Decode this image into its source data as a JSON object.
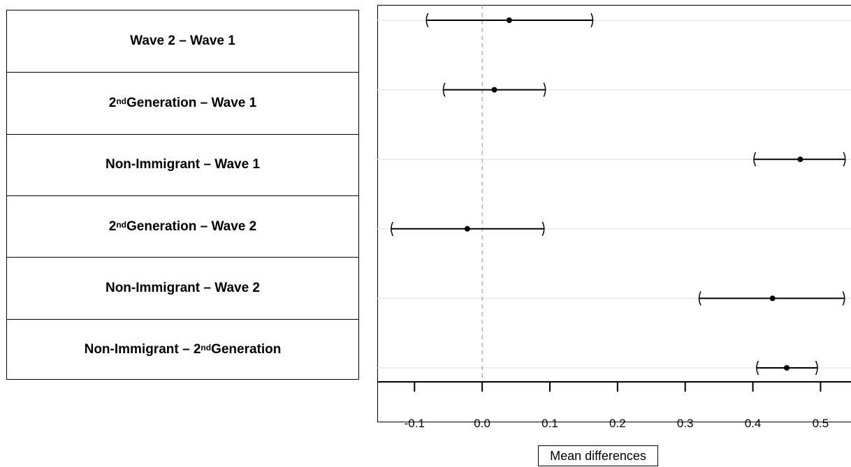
{
  "chart_data": {
    "type": "scatter",
    "subtype": "interval-plot",
    "comparisons": [
      {
        "pre": "Wave 2 – Wave 1",
        "sup": "",
        "post": "",
        "estimate": 0.04,
        "lower": -0.083,
        "upper": 0.164
      },
      {
        "pre": "2",
        "sup": "nd",
        "post": " Generation – Wave 1",
        "estimate": 0.018,
        "lower": -0.058,
        "upper": 0.094
      },
      {
        "pre": "Non-Immigrant – Wave 1",
        "sup": "",
        "post": "",
        "estimate": 0.47,
        "lower": 0.401,
        "upper": 0.537
      },
      {
        "pre": "2",
        "sup": "nd",
        "post": " Generation – Wave 2",
        "estimate": -0.022,
        "lower": -0.135,
        "upper": 0.092
      },
      {
        "pre": "Non-Immigrant – Wave 2",
        "sup": "",
        "post": "",
        "estimate": 0.429,
        "lower": 0.32,
        "upper": 0.536
      },
      {
        "pre": "Non-Immigrant – 2",
        "sup": "nd",
        "post": " Generation",
        "estimate": 0.45,
        "lower": 0.405,
        "upper": 0.496
      }
    ],
    "x_ticks": [
      "-0.1",
      "0.0",
      "0.1",
      "0.2",
      "0.3",
      "0.4",
      "0.5"
    ],
    "xlim": [
      -0.155,
      0.545
    ],
    "reference_line": 0.0,
    "xlabel": "Mean differences",
    "grid": "horizontal"
  }
}
